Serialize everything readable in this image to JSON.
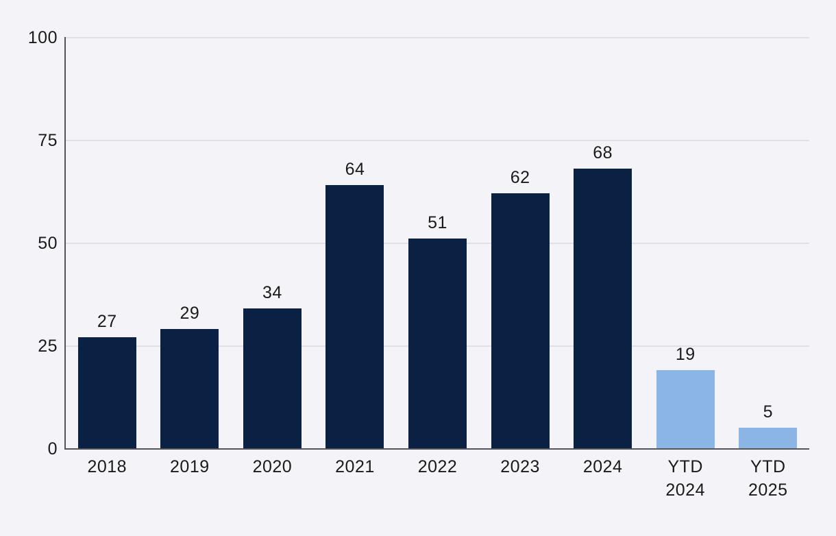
{
  "chart_data": {
    "type": "bar",
    "categories": [
      "2018",
      "2019",
      "2020",
      "2021",
      "2022",
      "2023",
      "2024",
      "YTD 2024",
      "YTD 2025"
    ],
    "values": [
      27,
      29,
      34,
      64,
      51,
      62,
      68,
      19,
      5
    ],
    "bar_color_keys": [
      "annual",
      "annual",
      "annual",
      "annual",
      "annual",
      "annual",
      "annual",
      "ytd",
      "ytd"
    ],
    "title": "",
    "xlabel": "",
    "ylabel": "",
    "ylim": [
      0,
      100
    ],
    "yticks": [
      0,
      25,
      50,
      75,
      100
    ],
    "grid": "horizontal",
    "data_labels": true,
    "legend": "none"
  },
  "colors": {
    "background": "#f4f4f8",
    "annual": "#0a2143",
    "ytd": "#8ab5e5",
    "gridline": "#e0e0e6",
    "axis": "#54555a",
    "text": "#1a1a1a"
  }
}
